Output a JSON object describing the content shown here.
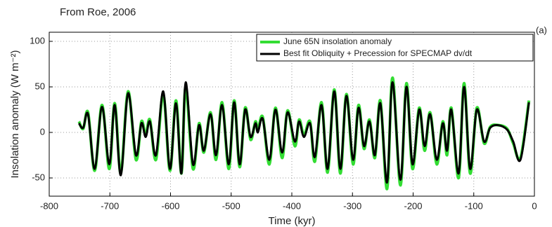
{
  "chart_data": {
    "type": "line",
    "subtitle": "From Roe, 2006",
    "annotation": "(a)",
    "x_label": "Time (kyr)",
    "y_label": "Insolation anomaly (W m⁻²)",
    "xlim": [
      -800,
      0
    ],
    "xticks": [
      -800,
      -700,
      -600,
      -500,
      -400,
      -300,
      -200,
      -100,
      0
    ],
    "ylim": [
      -70,
      110
    ],
    "yticks": [
      -50,
      0,
      50,
      100
    ],
    "grid": true,
    "legend": "upper right",
    "x": [
      -751,
      -744,
      -736,
      -725,
      -713,
      -701,
      -692,
      -682,
      -670,
      -657,
      -648,
      -641,
      -634,
      -624,
      -612,
      -601,
      -591,
      -582,
      -575,
      -563,
      -553,
      -545,
      -534,
      -525,
      -515,
      -504,
      -495,
      -486,
      -477,
      -468,
      -460,
      -456,
      -448,
      -437,
      -427,
      -416,
      -407,
      -395,
      -388,
      -380,
      -370,
      -362,
      -351,
      -341,
      -330,
      -320,
      -310,
      -299,
      -290,
      -281,
      -272,
      -263,
      -254,
      -243,
      -234,
      -221,
      -211,
      -201,
      -190,
      -181,
      -172,
      -161,
      -151,
      -144,
      -137,
      -125,
      -116,
      -106,
      -95,
      -83,
      -73,
      -60,
      -45,
      -35,
      -23,
      -9
    ],
    "series": [
      {
        "name": "June 65N insolation anomaly",
        "color": "#33dd33",
        "width": 4,
        "values": [
          12,
          4,
          22,
          -42,
          30,
          -40,
          32,
          -45,
          45,
          -30,
          12,
          -3,
          14,
          -30,
          42,
          -42,
          35,
          -45,
          50,
          -40,
          10,
          -22,
          22,
          -30,
          33,
          -40,
          35,
          -38,
          27,
          -8,
          12,
          2,
          17,
          -35,
          27,
          -28,
          24,
          -15,
          14,
          -3,
          12,
          -32,
          33,
          -44,
          47,
          -45,
          42,
          -35,
          30,
          -18,
          14,
          -28,
          35,
          -62,
          60,
          -58,
          54,
          -40,
          27,
          -20,
          22,
          -35,
          12,
          -25,
          27,
          -50,
          54,
          -45,
          27,
          -12,
          6,
          8,
          4,
          -12,
          -28,
          35
        ]
      },
      {
        "name": "Best fit Obliquity + Precession for SPECMAP dv/dt",
        "color": "#000000",
        "width": 3,
        "values": [
          10,
          5,
          20,
          -40,
          28,
          -35,
          30,
          -47,
          43,
          -25,
          10,
          -5,
          12,
          -25,
          45,
          -40,
          32,
          -45,
          55,
          -35,
          8,
          -20,
          20,
          -25,
          30,
          -35,
          33,
          -35,
          25,
          -5,
          10,
          0,
          15,
          -30,
          25,
          -22,
          22,
          -10,
          12,
          -5,
          10,
          -27,
          30,
          -40,
          45,
          -40,
          40,
          -30,
          27,
          -15,
          12,
          -25,
          32,
          -55,
          55,
          -52,
          50,
          -35,
          25,
          -15,
          20,
          -30,
          10,
          -20,
          25,
          -45,
          50,
          -40,
          25,
          -10,
          5,
          8,
          3,
          -10,
          -30,
          33
        ]
      }
    ]
  }
}
